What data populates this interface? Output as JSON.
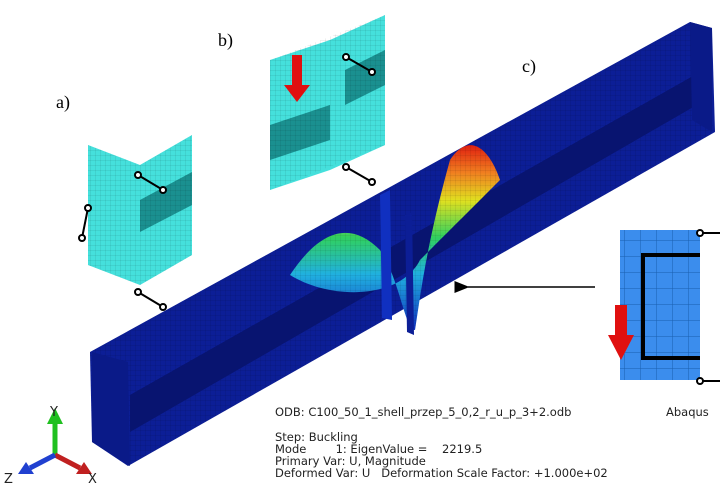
{
  "labels": {
    "a": "a)",
    "b": "b)",
    "c": "c)"
  },
  "triad": {
    "y": "Y",
    "z": "Z",
    "x": "X"
  },
  "info": {
    "odb": "ODB: C100_50_1_shell_przep_5_0,2_r_u_p_3+2.odb",
    "software": "Abaqus",
    "step": "Step: Buckling",
    "mode": "Mode        1: EigenValue =    2219.5",
    "primary": "Primary Var: U, Magnitude",
    "deformed": "Deformed Var: U   Deformation Scale Factor: +1.000e+02"
  }
}
